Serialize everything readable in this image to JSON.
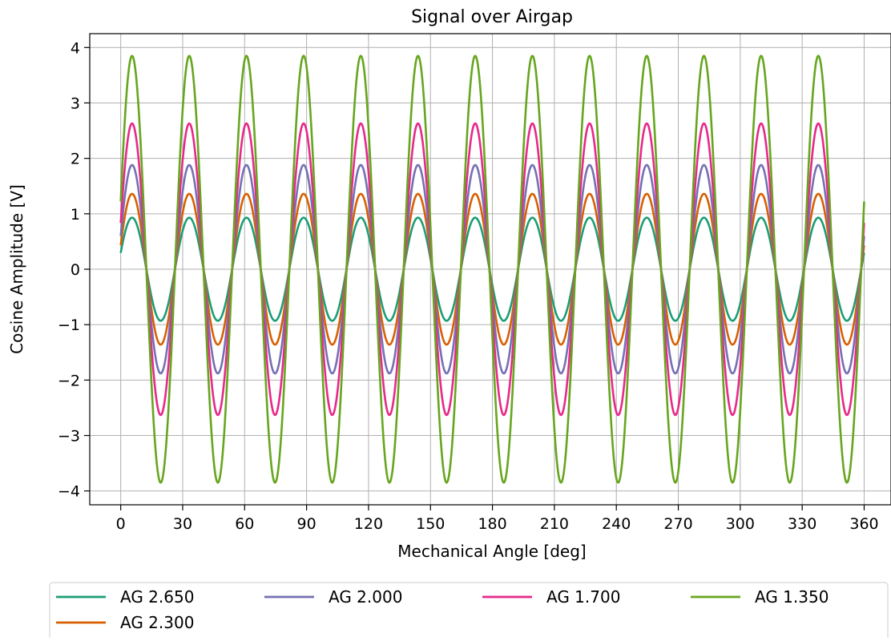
{
  "chart_data": {
    "type": "line",
    "title": "Signal over Airgap",
    "xlabel": "Mechanical Angle [deg]",
    "ylabel": "Cosine Amplitude [V]",
    "xlim": [
      -15,
      373
    ],
    "ylim": [
      -4.25,
      4.25
    ],
    "xticks": [
      0,
      30,
      60,
      90,
      120,
      150,
      180,
      210,
      240,
      270,
      300,
      330,
      360
    ],
    "yticks": [
      -4,
      -3,
      -2,
      -1,
      0,
      1,
      2,
      3,
      4
    ],
    "grid": true,
    "legend_position": "below-plot",
    "legend_columns": 4,
    "waveform": {
      "function": "cosine",
      "cycles_over_360_deg": 13,
      "phase_deg": 5.5
    },
    "series": [
      {
        "name": "AG 2.650",
        "amplitude": 0.93,
        "color": "#1b9e77"
      },
      {
        "name": "AG 2.300",
        "amplitude": 1.36,
        "color": "#d95f02"
      },
      {
        "name": "AG 2.000",
        "amplitude": 1.88,
        "color": "#7570b3"
      },
      {
        "name": "AG 1.700",
        "amplitude": 2.63,
        "color": "#e7298a"
      },
      {
        "name": "AG 1.350",
        "amplitude": 3.85,
        "color": "#66a61e"
      }
    ],
    "legend_order": [
      "AG 2.650",
      "AG 2.000",
      "AG 1.700",
      "AG 1.350",
      "AG 2.300"
    ]
  }
}
